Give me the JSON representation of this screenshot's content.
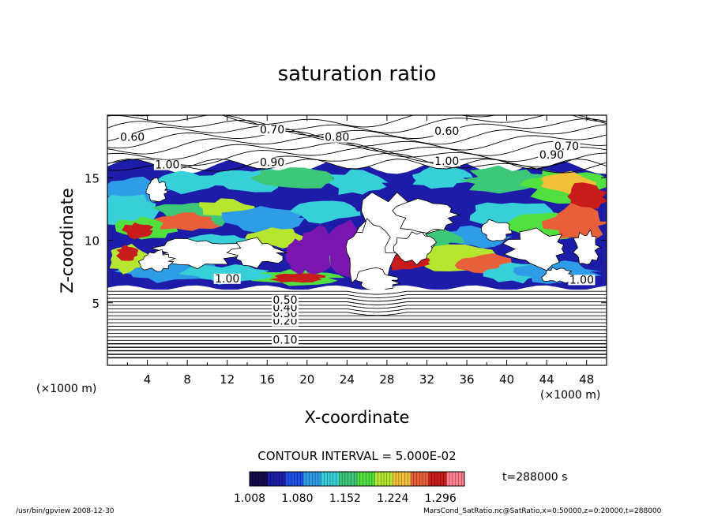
{
  "chart_data": {
    "type": "contour",
    "title": "saturation ratio",
    "xlabel": "X-coordinate",
    "ylabel": "Z-coordinate",
    "x_unit": "(×1000 m)",
    "z_unit": "(×1000 m)",
    "x_ticks": [
      4,
      8,
      12,
      16,
      20,
      24,
      28,
      32,
      36,
      40,
      44,
      48
    ],
    "z_ticks": [
      5,
      10,
      15
    ],
    "xlim": [
      0,
      50
    ],
    "zlim": [
      0,
      20
    ],
    "contour_interval_text": "CONTOUR INTERVAL = 5.000E-02",
    "contour_labels": [
      {
        "text": "0.10",
        "x": 17.8,
        "z": 1.8
      },
      {
        "text": "0.20",
        "x": 17.8,
        "z": 3.3
      },
      {
        "text": "0.30",
        "x": 17.8,
        "z": 3.9
      },
      {
        "text": "0.40",
        "x": 17.8,
        "z": 4.4
      },
      {
        "text": "0.50",
        "x": 17.8,
        "z": 5.0
      },
      {
        "text": "0.60",
        "x": 2.5,
        "z": 18.0
      },
      {
        "text": "0.70",
        "x": 16.5,
        "z": 18.6
      },
      {
        "text": "0.80",
        "x": 23.0,
        "z": 18.0
      },
      {
        "text": "0.60",
        "x": 34.0,
        "z": 18.5
      },
      {
        "text": "0.70",
        "x": 46.0,
        "z": 17.3
      },
      {
        "text": "0.90",
        "x": 16.5,
        "z": 16.0
      },
      {
        "text": "0.90",
        "x": 44.5,
        "z": 16.6
      },
      {
        "text": "1.00",
        "x": 6.0,
        "z": 15.8
      },
      {
        "text": "1.00",
        "x": 34.0,
        "z": 16.1
      },
      {
        "text": "1.00",
        "x": 12.0,
        "z": 6.7
      },
      {
        "text": "1.00",
        "x": 47.5,
        "z": 6.6
      }
    ],
    "colorbar": {
      "ticks": [
        "1.008",
        "1.080",
        "1.152",
        "1.224",
        "1.296"
      ],
      "range": [
        1.008,
        1.332
      ],
      "colors": [
        "#160a4a",
        "#1c1ca8",
        "#1f4fe6",
        "#2f9ce8",
        "#38d0d8",
        "#3cc878",
        "#52e040",
        "#b6e630",
        "#f3c03a",
        "#e8603a",
        "#c81c1c",
        "#ff8090"
      ]
    },
    "time_label": "t=288000 s",
    "footer_left": "/usr/bin/gpview  2008-12-30",
    "footer_right": "MarsCond_SatRatio.nc@SatRatio,x=0:50000,z=0:20000,t=288000"
  }
}
